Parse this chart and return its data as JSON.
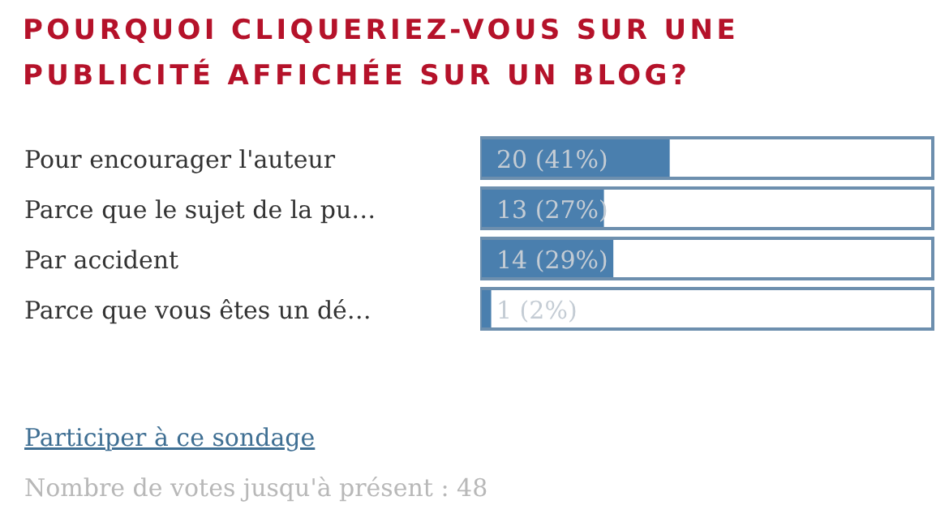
{
  "chart_data": {
    "type": "bar",
    "orientation": "horizontal",
    "title": "POURQUOI CLIQUERIEZ-VOUS SUR UNE PUBLICITÉ AFFICHÉE SUR UN BLOG?",
    "categories": [
      "Pour encourager l'auteur",
      "Parce que le sujet de la pu…",
      "Par accident",
      "Parce que vous êtes un dé…"
    ],
    "values": [
      20,
      13,
      14,
      1
    ],
    "color": "#4a7fae",
    "xlim": [
      0,
      48
    ],
    "value_labels": [
      "20 (41%)",
      "13 (27%)",
      "14 (29%)",
      "1 (2%)"
    ],
    "annotations": [
      "Participer à ce sondage",
      "Nombre de votes jusqu'à présent : 48"
    ]
  }
}
